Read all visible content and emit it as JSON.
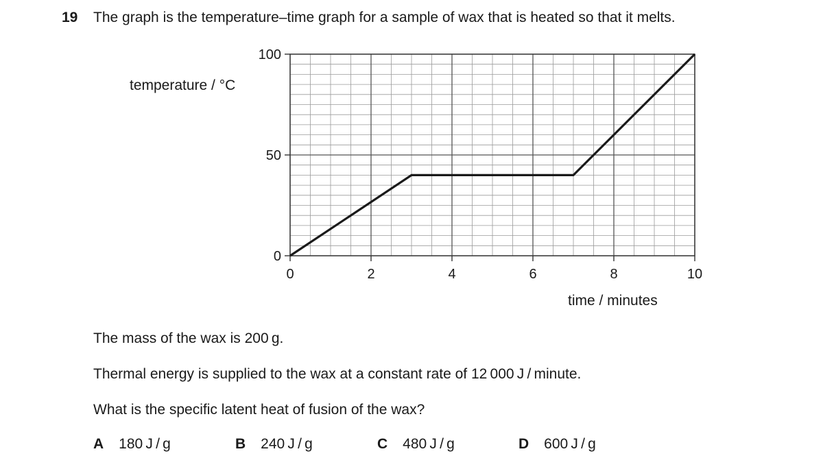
{
  "question": {
    "number": "19",
    "text": "The graph is the temperature–time graph for a sample of wax that is heated so that it melts."
  },
  "chart_data": {
    "type": "line",
    "title": "",
    "xlabel": "time / minutes",
    "ylabel": "temperature / °C",
    "xlim": [
      0,
      10
    ],
    "ylim": [
      0,
      100
    ],
    "x_ticks": [
      0,
      2,
      4,
      6,
      8,
      10
    ],
    "y_ticks": [
      0,
      50,
      100
    ],
    "grid": true,
    "series": [
      {
        "x": [
          0,
          3,
          7,
          10
        ],
        "y": [
          0,
          40,
          40,
          100
        ]
      }
    ]
  },
  "info": {
    "line1": "The mass of the wax is 200 g.",
    "line2": "Thermal energy is supplied to the wax at a constant rate of 12 000 J / minute.",
    "line3": "What is the specific latent heat of fusion of the wax?"
  },
  "options": [
    {
      "letter": "A",
      "text": "180 J / g"
    },
    {
      "letter": "B",
      "text": "240 J / g"
    },
    {
      "letter": "C",
      "text": "480 J / g"
    },
    {
      "letter": "D",
      "text": "600 J / g"
    }
  ]
}
